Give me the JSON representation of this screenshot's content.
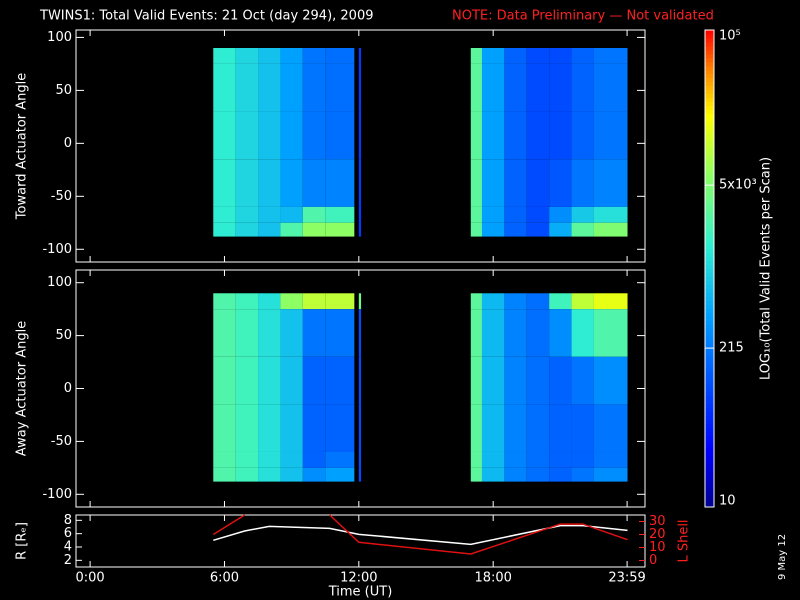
{
  "title": "TWINS1: Total Valid Events: 21 Oct (day 294), 2009",
  "note": "NOTE: Data Preliminary — Not validated",
  "side_text": "9 May 12",
  "colorbar": {
    "label": "LOG₁₀(Total Valid Events per Scan)",
    "lim": [
      10,
      100000
    ],
    "log": true,
    "ticks": [
      {
        "value": 10,
        "label": "10"
      },
      215,
      {
        "value": 5000,
        "label": "5x10³"
      },
      {
        "value": 100000,
        "label": "10⁵"
      }
    ]
  },
  "chart_data": [
    {
      "type": "heatmap",
      "ylabel": "Toward Actuator Angle",
      "xlim": [
        -0.63,
        24.78
      ],
      "xticks": [
        0,
        6,
        12,
        18,
        23.98
      ],
      "ylim": [
        -112,
        107
      ],
      "yticks": [
        -100,
        -50,
        0,
        50,
        100
      ],
      "x_edges": [
        5.5,
        6.5,
        7.5,
        8.5,
        9.5,
        10.5,
        11.8,
        12.0,
        12.1,
        17.0,
        17.5,
        18.5,
        19.5,
        20.5,
        21.5,
        22.5,
        24.0
      ],
      "y_edges": [
        90,
        75,
        30,
        -15,
        -60,
        -75,
        -88
      ],
      "values": [
        [
          1500,
          1000,
          700,
          400,
          200,
          180,
          null,
          80,
          null,
          3000,
          400,
          150,
          100,
          100,
          150,
          200
        ],
        [
          1500,
          1000,
          700,
          400,
          200,
          180,
          null,
          80,
          null,
          3000,
          400,
          150,
          100,
          100,
          150,
          200
        ],
        [
          1500,
          1000,
          700,
          400,
          200,
          180,
          null,
          80,
          null,
          3000,
          400,
          150,
          100,
          100,
          150,
          200
        ],
        [
          1500,
          1000,
          700,
          400,
          250,
          250,
          null,
          80,
          null,
          3000,
          400,
          150,
          100,
          120,
          200,
          250
        ],
        [
          1500,
          1000,
          700,
          600,
          2500,
          2000,
          null,
          80,
          null,
          3000,
          400,
          150,
          100,
          300,
          800,
          1200
        ],
        [
          1500,
          1000,
          700,
          2500,
          6000,
          6000,
          null,
          80,
          null,
          3000,
          400,
          150,
          100,
          500,
          3000,
          5000
        ]
      ]
    },
    {
      "type": "heatmap",
      "ylabel": "Away Actuator Angle",
      "xlim": [
        -0.63,
        24.78
      ],
      "xticks": [
        0,
        6,
        12,
        18,
        23.98
      ],
      "ylim": [
        -112,
        112
      ],
      "yticks": [
        -100,
        -50,
        0,
        50,
        100
      ],
      "x_edges": [
        5.5,
        6.5,
        7.5,
        8.5,
        9.5,
        10.5,
        11.8,
        12.0,
        12.1,
        17.0,
        17.5,
        18.5,
        19.5,
        20.5,
        21.5,
        22.5,
        24.0
      ],
      "y_edges": [
        90,
        75,
        30,
        -15,
        -60,
        -75,
        -88
      ],
      "values": [
        [
          2500,
          2000,
          1200,
          6000,
          10000,
          10000,
          null,
          4000,
          null,
          3000,
          600,
          250,
          180,
          2000,
          10000,
          15000
        ],
        [
          2500,
          2000,
          1200,
          700,
          200,
          200,
          null,
          100,
          null,
          3000,
          600,
          250,
          180,
          300,
          1500,
          2500
        ],
        [
          2500,
          2000,
          1200,
          700,
          150,
          150,
          null,
          100,
          null,
          3000,
          600,
          250,
          180,
          150,
          200,
          300
        ],
        [
          2500,
          2000,
          1200,
          700,
          150,
          150,
          null,
          100,
          null,
          3000,
          600,
          250,
          180,
          150,
          150,
          200
        ],
        [
          2500,
          2000,
          1200,
          700,
          150,
          200,
          null,
          100,
          null,
          3000,
          600,
          250,
          180,
          150,
          150,
          200
        ],
        [
          2500,
          2000,
          1200,
          700,
          300,
          400,
          null,
          100,
          null,
          3000,
          600,
          250,
          180,
          150,
          200,
          300
        ]
      ]
    },
    {
      "type": "line",
      "ylabel": "R [Rₑ]",
      "y2label": "L Shell",
      "xlabel": "Time (UT)",
      "xlim": [
        -0.63,
        24.78
      ],
      "xticks": [
        {
          "value": 0,
          "label": "0:00"
        },
        {
          "value": 6,
          "label": "6:00"
        },
        {
          "value": 12,
          "label": "12:00"
        },
        {
          "value": 18,
          "label": "18:00"
        },
        {
          "value": 23.98,
          "label": "23:59"
        }
      ],
      "ylim": [
        1,
        8.8
      ],
      "yticks": [
        2,
        4,
        6,
        8
      ],
      "y2lim": [
        -5,
        35
      ],
      "y2ticks": [
        0,
        10,
        20,
        30
      ],
      "y2color": "#ff2020",
      "x": [
        5.5,
        6.9,
        8,
        10.7,
        12,
        17,
        21,
        22,
        24
      ],
      "series": [
        {
          "color": "#ffffff",
          "values": [
            5,
            6.4,
            7.1,
            6.8,
            5.9,
            4.4,
            7.2,
            7.2,
            6.5
          ]
        },
        {
          "color": "#e01010",
          "axis": "y2",
          "values": [
            20,
            35,
            null,
            35,
            14,
            5,
            28,
            28,
            16
          ]
        }
      ]
    }
  ]
}
